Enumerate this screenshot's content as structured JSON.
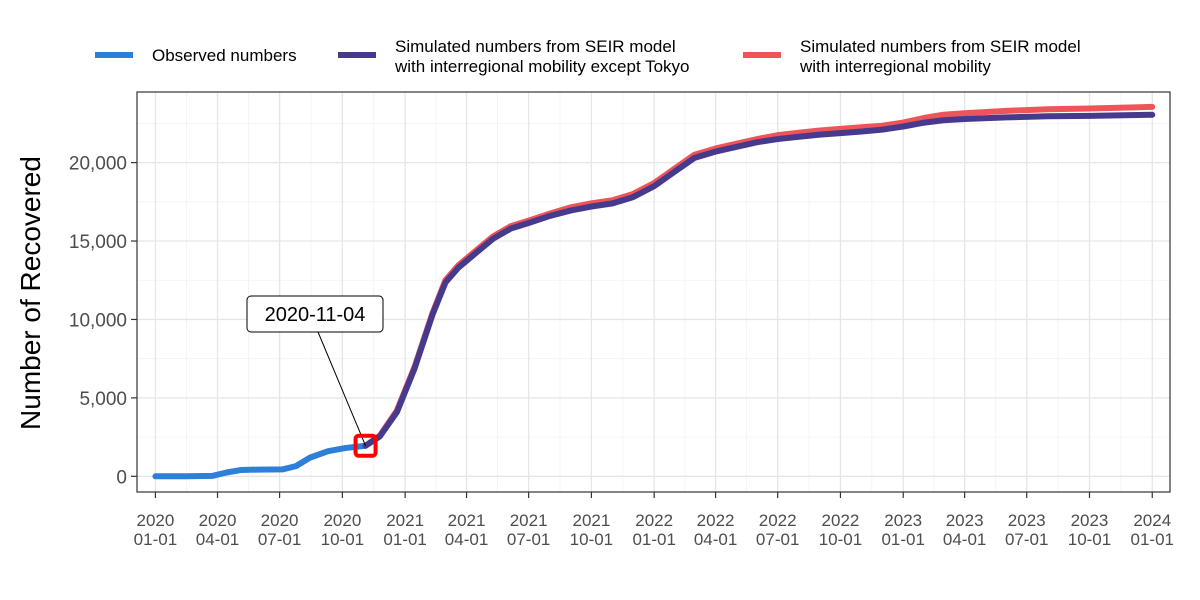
{
  "chart_data": {
    "type": "line",
    "title": "",
    "xlabel": "",
    "ylabel": "Number of Recovered",
    "x_range": [
      "2019-12-05",
      "2024-01-27"
    ],
    "ylim": [
      -1000,
      24500
    ],
    "grid": true,
    "legend_position": "top",
    "x_ticks": [
      {
        "date": "2020-01-01",
        "line1": "2020",
        "line2": "01-01"
      },
      {
        "date": "2020-04-01",
        "line1": "2020",
        "line2": "04-01"
      },
      {
        "date": "2020-07-01",
        "line1": "2020",
        "line2": "07-01"
      },
      {
        "date": "2020-10-01",
        "line1": "2020",
        "line2": "10-01"
      },
      {
        "date": "2021-01-01",
        "line1": "2021",
        "line2": "01-01"
      },
      {
        "date": "2021-04-01",
        "line1": "2021",
        "line2": "04-01"
      },
      {
        "date": "2021-07-01",
        "line1": "2021",
        "line2": "07-01"
      },
      {
        "date": "2021-10-01",
        "line1": "2021",
        "line2": "10-01"
      },
      {
        "date": "2022-01-01",
        "line1": "2022",
        "line2": "01-01"
      },
      {
        "date": "2022-04-01",
        "line1": "2022",
        "line2": "04-01"
      },
      {
        "date": "2022-07-01",
        "line1": "2022",
        "line2": "07-01"
      },
      {
        "date": "2022-10-01",
        "line1": "2022",
        "line2": "10-01"
      },
      {
        "date": "2023-01-01",
        "line1": "2023",
        "line2": "01-01"
      },
      {
        "date": "2023-04-01",
        "line1": "2023",
        "line2": "04-01"
      },
      {
        "date": "2023-07-01",
        "line1": "2023",
        "line2": "07-01"
      },
      {
        "date": "2023-10-01",
        "line1": "2023",
        "line2": "10-01"
      },
      {
        "date": "2024-01-01",
        "line1": "2024",
        "line2": "01-01"
      }
    ],
    "y_ticks": [
      {
        "value": 0,
        "label": "0"
      },
      {
        "value": 5000,
        "label": "5,000"
      },
      {
        "value": 10000,
        "label": "10,000"
      },
      {
        "value": 15000,
        "label": "15,000"
      },
      {
        "value": 20000,
        "label": "20,000"
      }
    ],
    "series": [
      {
        "name": "Observed numbers",
        "color": "#2e7fd9",
        "points": [
          [
            "2020-01-01",
            0
          ],
          [
            "2020-02-15",
            0
          ],
          [
            "2020-03-25",
            30
          ],
          [
            "2020-04-15",
            250
          ],
          [
            "2020-05-05",
            400
          ],
          [
            "2020-06-01",
            430
          ],
          [
            "2020-07-05",
            440
          ],
          [
            "2020-07-25",
            650
          ],
          [
            "2020-08-15",
            1200
          ],
          [
            "2020-09-10",
            1600
          ],
          [
            "2020-10-05",
            1800
          ],
          [
            "2020-11-04",
            1950
          ]
        ]
      },
      {
        "name": "Simulated numbers from SEIR model with interregional mobility",
        "color": "#ef5558",
        "points": [
          [
            "2020-11-04",
            1950
          ],
          [
            "2020-11-25",
            2600
          ],
          [
            "2020-12-20",
            4200
          ],
          [
            "2021-01-15",
            7000
          ],
          [
            "2021-02-10",
            10400
          ],
          [
            "2021-03-01",
            12500
          ],
          [
            "2021-03-20",
            13450
          ],
          [
            "2021-04-15",
            14400
          ],
          [
            "2021-05-10",
            15300
          ],
          [
            "2021-06-05",
            15950
          ],
          [
            "2021-07-01",
            16300
          ],
          [
            "2021-08-01",
            16750
          ],
          [
            "2021-09-01",
            17150
          ],
          [
            "2021-10-01",
            17400
          ],
          [
            "2021-11-01",
            17600
          ],
          [
            "2021-12-01",
            18000
          ],
          [
            "2022-01-01",
            18700
          ],
          [
            "2022-02-01",
            19650
          ],
          [
            "2022-03-01",
            20500
          ],
          [
            "2022-04-01",
            20900
          ],
          [
            "2022-05-01",
            21200
          ],
          [
            "2022-06-01",
            21500
          ],
          [
            "2022-07-01",
            21750
          ],
          [
            "2022-08-01",
            21900
          ],
          [
            "2022-09-01",
            22050
          ],
          [
            "2022-10-01",
            22150
          ],
          [
            "2022-11-01",
            22250
          ],
          [
            "2022-12-01",
            22350
          ],
          [
            "2023-01-01",
            22550
          ],
          [
            "2023-02-01",
            22850
          ],
          [
            "2023-03-01",
            23050
          ],
          [
            "2023-04-01",
            23150
          ],
          [
            "2023-06-01",
            23300
          ],
          [
            "2023-08-01",
            23400
          ],
          [
            "2023-10-01",
            23450
          ],
          [
            "2024-01-01",
            23550
          ]
        ]
      },
      {
        "name": "Simulated numbers from SEIR model with interregional mobility except Tokyo",
        "color": "#463a8c",
        "points": [
          [
            "2020-11-04",
            1950
          ],
          [
            "2020-11-25",
            2550
          ],
          [
            "2020-12-20",
            4100
          ],
          [
            "2021-01-15",
            6900
          ],
          [
            "2021-02-10",
            10300
          ],
          [
            "2021-03-01",
            12350
          ],
          [
            "2021-03-20",
            13300
          ],
          [
            "2021-04-15",
            14250
          ],
          [
            "2021-05-10",
            15150
          ],
          [
            "2021-06-05",
            15800
          ],
          [
            "2021-07-01",
            16150
          ],
          [
            "2021-08-01",
            16600
          ],
          [
            "2021-09-01",
            16950
          ],
          [
            "2021-10-01",
            17200
          ],
          [
            "2021-11-01",
            17400
          ],
          [
            "2021-12-01",
            17800
          ],
          [
            "2022-01-01",
            18500
          ],
          [
            "2022-02-01",
            19450
          ],
          [
            "2022-03-01",
            20300
          ],
          [
            "2022-04-01",
            20700
          ],
          [
            "2022-05-01",
            21000
          ],
          [
            "2022-06-01",
            21300
          ],
          [
            "2022-07-01",
            21500
          ],
          [
            "2022-08-01",
            21650
          ],
          [
            "2022-09-01",
            21780
          ],
          [
            "2022-10-01",
            21880
          ],
          [
            "2022-11-01",
            21980
          ],
          [
            "2022-12-01",
            22100
          ],
          [
            "2023-01-01",
            22300
          ],
          [
            "2023-02-01",
            22550
          ],
          [
            "2023-03-01",
            22700
          ],
          [
            "2023-04-01",
            22780
          ],
          [
            "2023-06-01",
            22880
          ],
          [
            "2023-08-01",
            22950
          ],
          [
            "2023-10-01",
            22980
          ],
          [
            "2024-01-01",
            23050
          ]
        ]
      }
    ],
    "legend": [
      {
        "lines": [
          "Observed numbers"
        ],
        "color": "#2e7fd9"
      },
      {
        "lines": [
          "Simulated numbers from SEIR model",
          "with interregional mobility except Tokyo"
        ],
        "color": "#463a8c"
      },
      {
        "lines": [
          "Simulated numbers from SEIR model",
          "with interregional mobility"
        ],
        "color": "#ef5558"
      }
    ],
    "annotation": {
      "label": "2020-11-04",
      "date": "2020-11-04",
      "value": 1950,
      "marker_color": "#ff0000"
    }
  }
}
